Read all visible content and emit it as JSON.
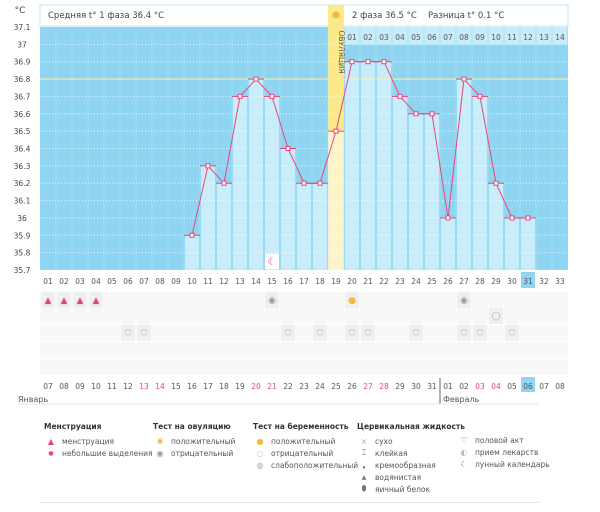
{
  "header": {
    "unit": "°C",
    "phase1": "Средняя t° 1 фаза 36.4 °C",
    "phase2": "2 фаза 36.5 °C",
    "diff": "Разница t° 0.1 °C",
    "ovulation_label": "ОВУЛЯЦИЯ"
  },
  "chart_data": {
    "type": "bar+line",
    "ylabel": "°C",
    "ylim": [
      35.7,
      37.1
    ],
    "yticks": [
      "37.1",
      "37",
      "36.9",
      "36.8",
      "36.7",
      "36.6",
      "36.5",
      "36.4",
      "36.3",
      "36.2",
      "36.1",
      "36",
      "35.9",
      "35.8",
      "35.7"
    ],
    "cycle_days": [
      "01",
      "02",
      "03",
      "04",
      "05",
      "06",
      "07",
      "08",
      "09",
      "10",
      "11",
      "12",
      "13",
      "14",
      "15",
      "16",
      "17",
      "18",
      "19",
      "20",
      "21",
      "22",
      "23",
      "24",
      "25",
      "26",
      "27",
      "28",
      "29",
      "30",
      "31",
      "32",
      "33"
    ],
    "temperatures": [
      null,
      null,
      null,
      null,
      null,
      null,
      null,
      null,
      null,
      35.9,
      36.3,
      36.2,
      36.7,
      36.8,
      36.7,
      36.4,
      36.2,
      36.2,
      36.5,
      36.9,
      36.9,
      36.9,
      36.7,
      36.6,
      36.6,
      36.0,
      36.8,
      36.7,
      36.2,
      36.0,
      36.0,
      null,
      null
    ],
    "coverline": 36.8,
    "ovulation_day": 19,
    "current_day": 31,
    "phase2_days": [
      "01",
      "02",
      "03",
      "04",
      "05",
      "06",
      "07",
      "08",
      "09",
      "10",
      "11",
      "12",
      "13",
      "14"
    ],
    "dates": [
      "07",
      "08",
      "09",
      "10",
      "11",
      "12",
      "13",
      "14",
      "15",
      "16",
      "17",
      "18",
      "19",
      "20",
      "21",
      "22",
      "23",
      "24",
      "25",
      "26",
      "27",
      "28",
      "29",
      "30",
      "31",
      "01",
      "02",
      "03",
      "04",
      "05",
      "06",
      "07",
      "08"
    ],
    "weekend_dates_idx": [
      6,
      7,
      13,
      14,
      20,
      21,
      27,
      28
    ],
    "months": [
      {
        "label": "Январь"
      },
      {
        "label": "Февраль"
      }
    ],
    "menstruation_days": [
      1,
      2,
      3,
      4
    ],
    "ovulation_test": [
      {
        "day": 15,
        "result": "negative"
      },
      {
        "day": 20,
        "result": "positive"
      },
      {
        "day": 27,
        "result": "negative"
      }
    ],
    "pregnancy_test": [
      {
        "day": 29,
        "result": "negative"
      }
    ],
    "intercourse_days": [
      6,
      7,
      16,
      18,
      20,
      21,
      24,
      27,
      28,
      30
    ],
    "moon_days": [
      15
    ],
    "colors": {
      "background": "#8fd5f2",
      "bar": "#c9ecfb",
      "line": "#e8457a",
      "coverline": "#f4ef9a",
      "ovulation": "#fbe98a",
      "weekend": "#e8457a",
      "current": "#8fd5f2"
    }
  },
  "legend": {
    "menstruation": {
      "title": "Менструация",
      "items": [
        "менструация",
        "небольшие выделения"
      ]
    },
    "ovulation_test": {
      "title": "Тест на овуляцию",
      "items": [
        "положительный",
        "отрицательный"
      ]
    },
    "pregnancy_test": {
      "title": "Тест на беременность",
      "items": [
        "положительный",
        "отрицательный",
        "слабоположительный"
      ]
    },
    "cervical": {
      "title": "Цервикальная жидкость",
      "items": [
        "сухо",
        "клейкая",
        "кремообразная",
        "водянистая",
        "яичный белок"
      ]
    },
    "other": {
      "items": [
        "половой акт",
        "прием лекарств",
        "лунный календарь"
      ]
    }
  }
}
